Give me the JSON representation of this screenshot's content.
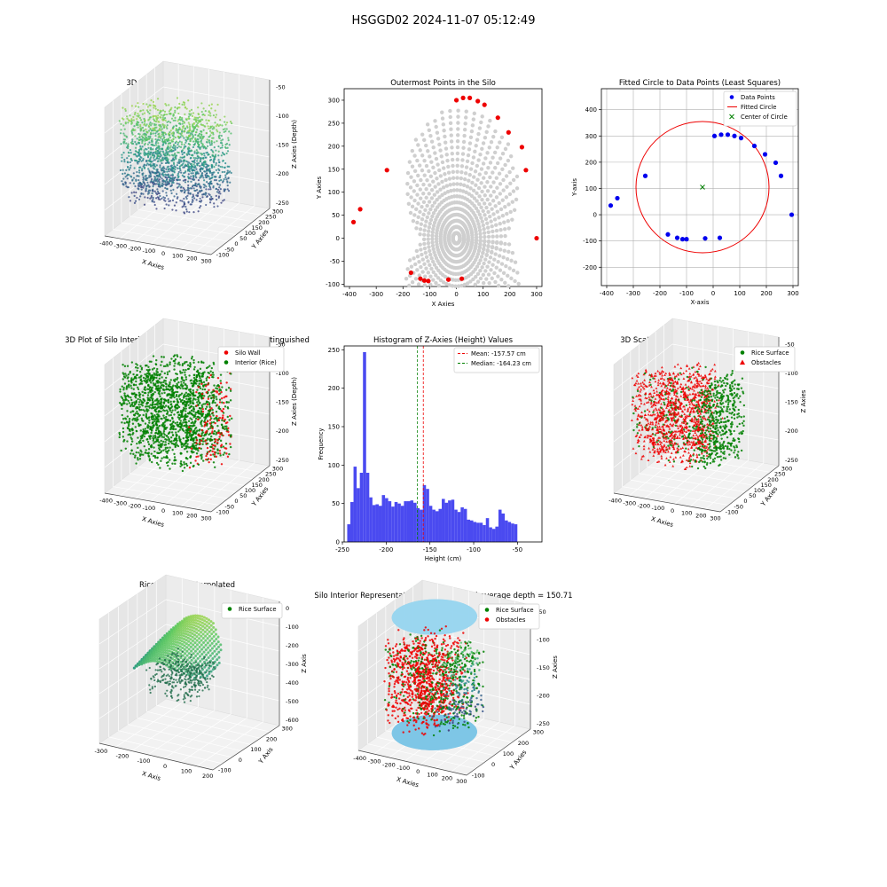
{
  "suptitle": "HSGGD02 2024-11-07 05:12:49",
  "chart_data": [
    {
      "id": "p1",
      "type": "scatter3d",
      "title": "3D Plot of Silo Interior(row data)",
      "xlabel": "X Axies",
      "ylabel": "Y Axies",
      "zlabel": "Z Axies (Depth)",
      "x_ticks": [
        -400,
        -300,
        -200,
        -100,
        0,
        100,
        200,
        300
      ],
      "y_ticks": [
        -100,
        -50,
        0,
        50,
        100,
        150,
        200,
        250,
        300
      ],
      "z_ticks": [
        -50,
        -100,
        -150,
        -200,
        -250
      ],
      "colormap": "viridis"
    },
    {
      "id": "p2",
      "type": "scatter",
      "title": "Outermost Points in the Silo",
      "xlabel": "X Axies",
      "ylabel": "Y Axies",
      "xlim": [
        -420,
        320
      ],
      "ylim": [
        -105,
        325
      ],
      "x_ticks": [
        -400,
        -300,
        -200,
        -100,
        0,
        100,
        200,
        300
      ],
      "y_ticks": [
        -100,
        -50,
        0,
        50,
        100,
        150,
        200,
        250,
        300
      ],
      "outer_points": [
        [
          -385,
          35
        ],
        [
          -360,
          63
        ],
        [
          -260,
          148
        ],
        [
          -170,
          -75
        ],
        [
          -135,
          -88
        ],
        [
          -120,
          -92
        ],
        [
          -105,
          -93
        ],
        [
          -30,
          -90
        ],
        [
          0,
          300
        ],
        [
          25,
          305
        ],
        [
          50,
          305
        ],
        [
          80,
          298
        ],
        [
          105,
          290
        ],
        [
          155,
          262
        ],
        [
          195,
          230
        ],
        [
          245,
          198
        ],
        [
          260,
          148
        ],
        [
          300,
          0
        ],
        [
          20,
          -88
        ]
      ],
      "colors": {
        "interior": "#cfcfcf",
        "outer": "#ee0000"
      }
    },
    {
      "id": "p3",
      "type": "scatter",
      "title": "Fitted Circle to Data Points (Least Squares)",
      "xlabel": "X-axis",
      "ylabel": "Y-axis",
      "xlim": [
        -420,
        320
      ],
      "ylim": [
        -270,
        480
      ],
      "x_ticks": [
        -400,
        -300,
        -200,
        -100,
        0,
        100,
        200,
        300
      ],
      "y_ticks": [
        -200,
        -100,
        0,
        100,
        200,
        300,
        400
      ],
      "grid": true,
      "legend": [
        "Data Points",
        "Fitted Circle",
        "Center of Circle"
      ],
      "legend_position": "top-right",
      "data_points": [
        [
          -385,
          35
        ],
        [
          -360,
          63
        ],
        [
          -255,
          148
        ],
        [
          -170,
          -75
        ],
        [
          -135,
          -88
        ],
        [
          -115,
          -93
        ],
        [
          -100,
          -93
        ],
        [
          -30,
          -90
        ],
        [
          25,
          -88
        ],
        [
          5,
          300
        ],
        [
          30,
          305
        ],
        [
          55,
          305
        ],
        [
          80,
          300
        ],
        [
          105,
          292
        ],
        [
          155,
          262
        ],
        [
          195,
          230
        ],
        [
          235,
          198
        ],
        [
          255,
          148
        ],
        [
          295,
          0
        ]
      ],
      "circle": {
        "cx": -40,
        "cy": 105,
        "r": 250
      },
      "colors": {
        "points": "#0000ee",
        "circle": "#ee0000",
        "center": "#008000"
      }
    },
    {
      "id": "p4",
      "type": "scatter3d",
      "title": "3D Plot of Silo Interior with Wall and Interior Points Distinguished",
      "xlabel": "X Axies",
      "ylabel": "Y Axies",
      "zlabel": "Z Axies (Depth)",
      "x_ticks": [
        -400,
        -300,
        -200,
        -100,
        0,
        100,
        200,
        300
      ],
      "y_ticks": [
        -100,
        -50,
        0,
        50,
        100,
        150,
        200,
        250,
        300
      ],
      "z_ticks": [
        -50,
        -100,
        -150,
        -200,
        -250
      ],
      "legend": [
        "Silo Wall",
        "Interior (Rice)"
      ],
      "colors": {
        "wall": "#ee0000",
        "interior": "#008000"
      }
    },
    {
      "id": "p5",
      "type": "bar",
      "title": "Histogram of Z-Axies (Height) Values",
      "xlabel": "Height (cm)",
      "ylabel": "Frequency",
      "xlim": [
        -248,
        -22
      ],
      "ylim": [
        0,
        255
      ],
      "x_ticks": [
        -250,
        -200,
        -150,
        -100,
        -50
      ],
      "y_ticks": [
        0,
        50,
        100,
        150,
        200,
        250
      ],
      "bin_start": -244.5,
      "bin_width": 3.6,
      "values": [
        23,
        52,
        98,
        70,
        90,
        247,
        90,
        58,
        48,
        49,
        47,
        61,
        57,
        53,
        46,
        52,
        50,
        47,
        53,
        53,
        54,
        51,
        44,
        42,
        74,
        69,
        47,
        42,
        40,
        43,
        56,
        51,
        54,
        55,
        42,
        39,
        45,
        43,
        29,
        28,
        26,
        25,
        25,
        22,
        31,
        19,
        17,
        20,
        42,
        37,
        28,
        26,
        24,
        23
      ],
      "mean": -157.57,
      "median": -164.23,
      "legend": [
        "Mean: -157.57 cm",
        "Median: -164.23 cm"
      ],
      "colors": {
        "bars": "#4a4af0",
        "mean": "#ee0000",
        "median": "#008000"
      }
    },
    {
      "id": "p6",
      "type": "scatter3d",
      "title": "3D Scatter Plot: Rice Surface vs Obstacles",
      "xlabel": "X Axies",
      "ylabel": "Y Axies",
      "zlabel": "Z Axies",
      "x_ticks": [
        -400,
        -300,
        -200,
        -100,
        0,
        100,
        200,
        300
      ],
      "y_ticks": [
        -100,
        -50,
        0,
        50,
        100,
        150,
        200,
        250,
        300
      ],
      "z_ticks": [
        -50,
        -100,
        -150,
        -200,
        -250
      ],
      "legend": [
        "Rice Surface",
        "Obstacles"
      ],
      "colors": {
        "surface": "#008000",
        "obstacles": "#ee0000"
      }
    },
    {
      "id": "p7",
      "type": "surface3d",
      "title": "Rice Surface Interpolated",
      "subtitle": "depth = 150.71",
      "xlabel": "X Axis",
      "ylabel": "Y Axis",
      "zlabel": "Z Axis",
      "x_ticks": [
        -300,
        -200,
        -100,
        0,
        100,
        200
      ],
      "y_ticks": [
        -100,
        0,
        100,
        200,
        300
      ],
      "z_ticks": [
        0,
        -100,
        -200,
        -300,
        -400,
        -500,
        -600
      ],
      "legend": [
        "Rice Surface"
      ]
    },
    {
      "id": "p8",
      "type": "scatter3d",
      "title": "Silo Interior Representation using weighted average depth = 150.71",
      "xlabel": "X Axies",
      "ylabel": "Y Axies",
      "zlabel": "Z Axies",
      "x_ticks": [
        -400,
        -300,
        -200,
        -100,
        0,
        100,
        200,
        300
      ],
      "y_ticks": [
        -100,
        0,
        100,
        200,
        300
      ],
      "z_ticks": [
        -50,
        -100,
        -150,
        -200,
        -250
      ],
      "legend": [
        "Rice Surface",
        "Obstacles"
      ],
      "colors": {
        "surface": "#008000",
        "obstacles": "#ee0000",
        "cylinder": "#87ceeb"
      }
    }
  ]
}
